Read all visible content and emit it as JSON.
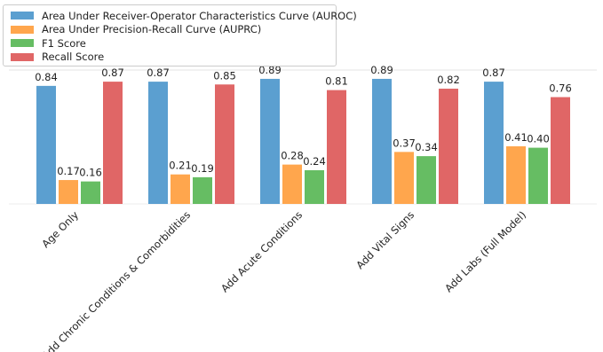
{
  "chart_data": {
    "type": "bar",
    "title": "",
    "xlabel": "",
    "ylabel": "",
    "ylim": [
      0,
      1.05
    ],
    "grid": false,
    "legend_position": "top-left",
    "categories": [
      "Age Only",
      "Add Chronic Conditions & Comorbidities",
      "Add Acute Conditions",
      "Add Vital Signs",
      "Add Labs (Full Model)"
    ],
    "series": [
      {
        "name": "Area Under Receiver-Operator Characteristics Curve (AUROC)",
        "color": "#5b9fd0",
        "values": [
          0.84,
          0.87,
          0.89,
          0.89,
          0.87
        ],
        "labels": [
          "0.84",
          "0.87",
          "0.89",
          "0.89",
          "0.87"
        ]
      },
      {
        "name": "Area Under Precision-Recall Curve (AUPRC)",
        "color": "#ffa64d",
        "values": [
          0.17,
          0.21,
          0.28,
          0.37,
          0.41
        ],
        "labels": [
          "0.17",
          "0.21",
          "0.28",
          "0.37",
          "0.41"
        ]
      },
      {
        "name": "F1 Score",
        "color": "#66bd63",
        "values": [
          0.16,
          0.19,
          0.24,
          0.34,
          0.4
        ],
        "labels": [
          "0.16",
          "0.19",
          "0.24",
          "0.34",
          "0.40"
        ]
      },
      {
        "name": "Recall Score",
        "color": "#e06666",
        "values": [
          0.87,
          0.85,
          0.81,
          0.82,
          0.76
        ],
        "labels": [
          "0.87",
          "0.85",
          "0.81",
          "0.82",
          "0.76"
        ]
      }
    ]
  }
}
